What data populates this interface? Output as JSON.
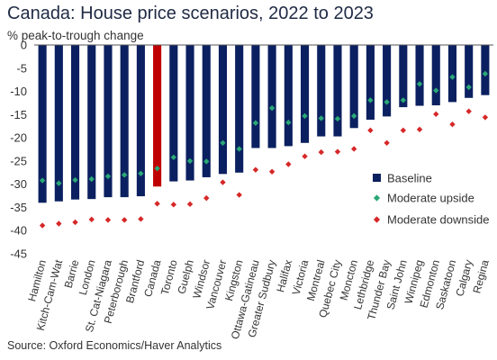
{
  "chart_data": {
    "type": "bar",
    "title": "Canada: House price scenarios, 2022 to 2023",
    "subtitle": "% peak-to-trough change",
    "source": "Source: Oxford Economics/Haver Analytics",
    "categories": [
      "Hamilton",
      "Kitch-Cam-Wat",
      "Barrie",
      "London",
      "St. Cat-Niagara",
      "Peterborough",
      "Brantford",
      "Canada",
      "Toronto",
      "Guelph",
      "Windsor",
      "Vancouver",
      "Kingston",
      "Ottawa-Gatineau",
      "Greater Sudbury",
      "Halifax",
      "Victoria",
      "Montreal",
      "Quebec City",
      "Moncton",
      "Lethbridge",
      "Thunder Bay",
      "Saint John",
      "Winnipeg",
      "Edmonton",
      "Saskatoon",
      "Calgary",
      "Regina"
    ],
    "highlight_category": "Canada",
    "ylim": [
      -45,
      0
    ],
    "yticks": [
      0,
      -5,
      -10,
      -15,
      -20,
      -25,
      -30,
      -35,
      -40,
      -45
    ],
    "grid": false,
    "legend_position": "right",
    "series": [
      {
        "name": "Baseline",
        "type": "bar",
        "color": "#0b2060",
        "values": [
          -34,
          -33.7,
          -33.3,
          -33.2,
          -32.8,
          -32.8,
          -32.6,
          -30.5,
          -29.4,
          -29.2,
          -28.5,
          -27.8,
          -27.5,
          -22.2,
          -22.2,
          -21.8,
          -21.1,
          -19.7,
          -19.7,
          -17.9,
          -16.1,
          -15.4,
          -13.4,
          -13.1,
          -13,
          -12.3,
          -11.4,
          -10.8
        ]
      },
      {
        "name": "Moderate upside",
        "type": "marker",
        "color": "#2aa876",
        "values": [
          -29.2,
          -29.8,
          -29.1,
          -28.9,
          -28.3,
          -28.0,
          -27.7,
          -26.6,
          -24.2,
          -25.0,
          -25.1,
          -21.1,
          -22.4,
          -16.8,
          -13.6,
          -16.7,
          -15.3,
          -15.8,
          -15.9,
          -15.3,
          -11.9,
          -12.3,
          -11.9,
          -8.4,
          -9.8,
          -6.9,
          -9.1,
          -6.2
        ]
      },
      {
        "name": "Moderate downside",
        "type": "marker",
        "color": "#d62828",
        "values": [
          -38.9,
          -38.5,
          -38.2,
          -37.6,
          -37.7,
          -37.7,
          -37.5,
          -34.2,
          -34.4,
          -34.3,
          -33.0,
          -29.6,
          -32.3,
          -26.9,
          -27.3,
          -25.7,
          -24.0,
          -23.1,
          -23.0,
          -22.4,
          -18.4,
          -21.1,
          -18.4,
          -18.2,
          -14.9,
          -17.1,
          -14.3,
          -15.6
        ]
      }
    ],
    "highlight_color": "#c00000"
  }
}
